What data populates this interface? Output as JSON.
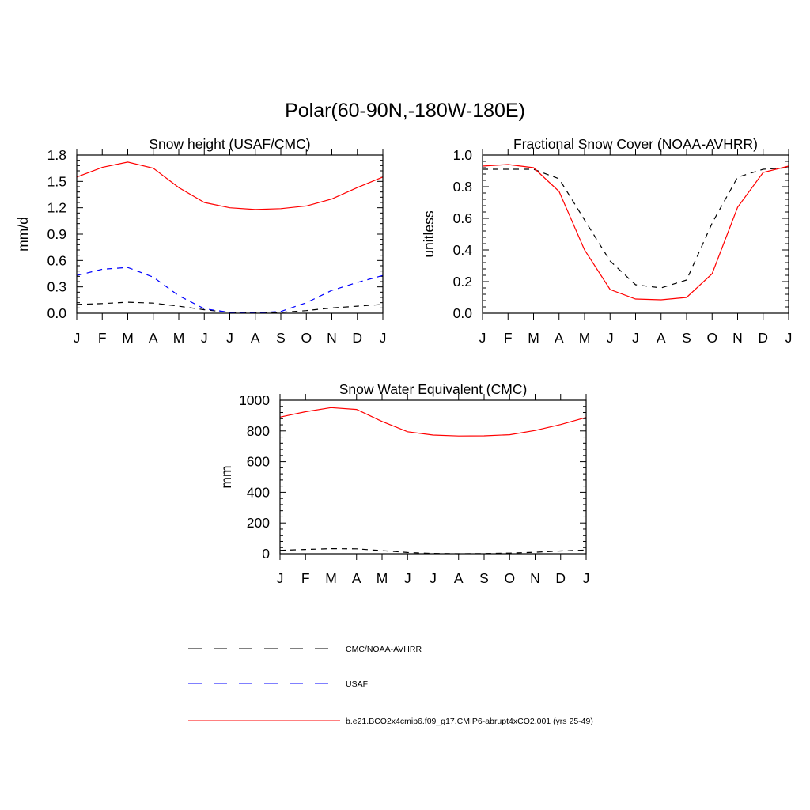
{
  "figure_title": "Polar(60-90N,-180W-180E)",
  "legend": [
    {
      "label": "CMC/NOAA-AVHRR",
      "color": "#000000",
      "dash": "dashed"
    },
    {
      "label": "USAF",
      "color": "#0000ff",
      "dash": "dashed"
    },
    {
      "label": "b.e21.BCO2x4cmip6.f09_g17.CMIP6-abrupt4xCO2.001 (yrs 25-49)",
      "color": "#ff0000",
      "dash": "solid"
    }
  ],
  "chart_data": [
    {
      "type": "line",
      "title": "Snow height (USAF/CMC)",
      "xlabel": "",
      "ylabel": "mm/d",
      "categories": [
        "J",
        "F",
        "M",
        "A",
        "M",
        "J",
        "J",
        "A",
        "S",
        "O",
        "N",
        "D",
        "J"
      ],
      "yticks": [
        "0.0",
        "0.3",
        "0.6",
        "0.9",
        "1.2",
        "1.5",
        "1.8"
      ],
      "ylim": [
        0,
        1.8
      ],
      "series": [
        {
          "key": "cmc",
          "color": "#000000",
          "dash": "dashed",
          "values": [
            0.1,
            0.11,
            0.125,
            0.115,
            0.08,
            0.04,
            0.01,
            0.005,
            0.01,
            0.03,
            0.06,
            0.08,
            0.1
          ]
        },
        {
          "key": "usaf",
          "color": "#0000ff",
          "dash": "dashed",
          "values": [
            0.43,
            0.5,
            0.52,
            0.41,
            0.2,
            0.05,
            0.01,
            0.005,
            0.02,
            0.12,
            0.26,
            0.35,
            0.43
          ]
        },
        {
          "key": "model",
          "color": "#ff0000",
          "dash": "solid",
          "values": [
            1.55,
            1.66,
            1.72,
            1.65,
            1.43,
            1.26,
            1.2,
            1.18,
            1.19,
            1.22,
            1.3,
            1.43,
            1.55
          ]
        }
      ]
    },
    {
      "type": "line",
      "title": "Fractional Snow Cover (NOAA-AVHRR)",
      "xlabel": "",
      "ylabel": "unitless",
      "categories": [
        "J",
        "F",
        "M",
        "A",
        "M",
        "J",
        "J",
        "A",
        "S",
        "O",
        "N",
        "D",
        "J"
      ],
      "yticks": [
        "0.0",
        "0.2",
        "0.4",
        "0.6",
        "0.8",
        "1.0"
      ],
      "ylim": [
        0,
        1.0
      ],
      "series": [
        {
          "key": "cmc",
          "color": "#000000",
          "dash": "dashed",
          "values": [
            0.91,
            0.91,
            0.91,
            0.85,
            0.59,
            0.33,
            0.18,
            0.16,
            0.21,
            0.57,
            0.86,
            0.91,
            0.92
          ]
        },
        {
          "key": "model",
          "color": "#ff0000",
          "dash": "solid",
          "values": [
            0.93,
            0.94,
            0.92,
            0.77,
            0.4,
            0.15,
            0.09,
            0.085,
            0.1,
            0.25,
            0.67,
            0.89,
            0.93
          ]
        }
      ]
    },
    {
      "type": "line",
      "title": "Snow Water Equivalent (CMC)",
      "xlabel": "",
      "ylabel": "mm",
      "categories": [
        "J",
        "F",
        "M",
        "A",
        "M",
        "J",
        "J",
        "A",
        "S",
        "O",
        "N",
        "D",
        "J"
      ],
      "yticks": [
        "0",
        "200",
        "400",
        "600",
        "800",
        "1000"
      ],
      "ylim": [
        0,
        1000
      ],
      "series": [
        {
          "key": "cmc",
          "color": "#000000",
          "dash": "dashed",
          "values": [
            22,
            28,
            33,
            32,
            20,
            8,
            2,
            0,
            1,
            4,
            10,
            18,
            24
          ]
        },
        {
          "key": "model",
          "color": "#ff0000",
          "dash": "solid",
          "values": [
            890,
            925,
            952,
            940,
            862,
            795,
            773,
            767,
            768,
            775,
            803,
            842,
            888
          ]
        }
      ]
    }
  ]
}
